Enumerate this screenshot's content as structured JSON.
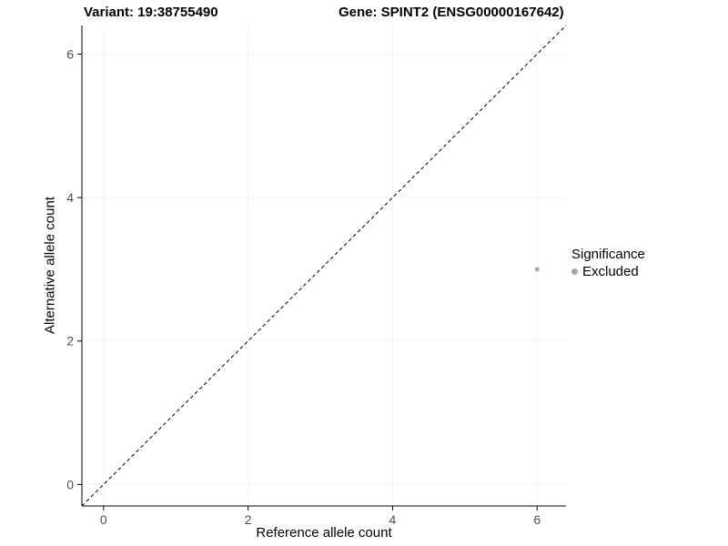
{
  "chart_data": {
    "type": "scatter",
    "title_left": "Variant: 19:38755490",
    "title_right": "Gene: SPINT2 (ENSG00000167642)",
    "xlabel": "Reference allele count",
    "ylabel": "Alternative allele count",
    "xlim": [
      -0.3,
      6.4
    ],
    "ylim": [
      -0.3,
      6.4
    ],
    "xticks": [
      0,
      2,
      4,
      6
    ],
    "yticks": [
      0,
      2,
      4,
      6
    ],
    "grid": "faint-major",
    "identity_line": {
      "slope": 1,
      "intercept": 0,
      "style": "dashed",
      "color": "#000000"
    },
    "points": [
      {
        "x": 6,
        "y": 3,
        "series": "Excluded"
      }
    ],
    "colors": {
      "point": "#a8a8a8",
      "axis": "#000000",
      "tick_label": "#4d4d4d",
      "gridline": "#f3f3f3"
    },
    "legend": {
      "position": "right",
      "title": "Significance",
      "items": [
        {
          "label": "Excluded",
          "color": "#a8a8a8"
        }
      ]
    }
  }
}
